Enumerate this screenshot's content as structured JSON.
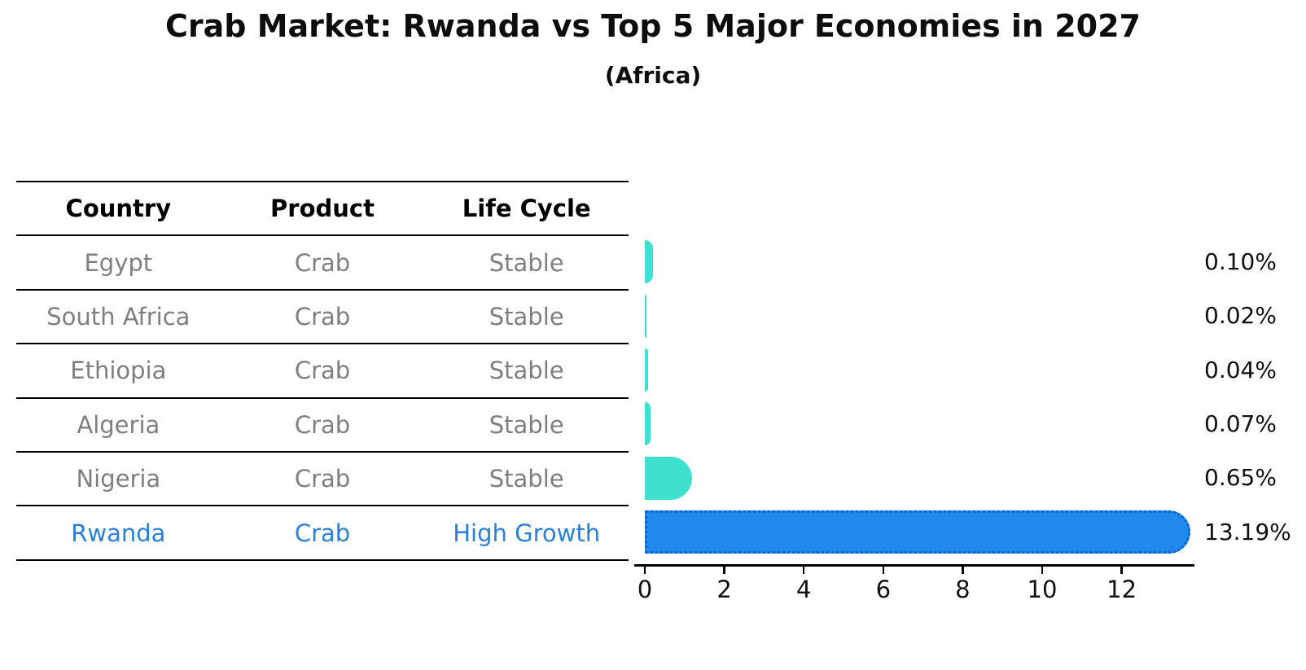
{
  "header": {
    "title": "Crab Market: Rwanda vs Top 5 Major Economies in 2027",
    "subtitle": "(Africa)"
  },
  "table": {
    "columns": [
      "Country",
      "Product",
      "Life Cycle"
    ],
    "rows": [
      {
        "country": "Egypt",
        "product": "Crab",
        "life_cycle": "Stable",
        "highlight": false
      },
      {
        "country": "South Africa",
        "product": "Crab",
        "life_cycle": "Stable",
        "highlight": false
      },
      {
        "country": "Ethiopia",
        "product": "Crab",
        "life_cycle": "Stable",
        "highlight": false
      },
      {
        "country": "Algeria",
        "product": "Crab",
        "life_cycle": "Stable",
        "highlight": false
      },
      {
        "country": "Nigeria",
        "product": "Crab",
        "life_cycle": "Stable",
        "highlight": false
      },
      {
        "country": "Rwanda",
        "product": "Crab",
        "life_cycle": "High Growth",
        "highlight": true
      }
    ]
  },
  "chart_data": {
    "type": "bar",
    "orientation": "horizontal",
    "title": "Crab Market: Rwanda vs Top 5 Major Economies in 2027",
    "subtitle": "(Africa)",
    "categories": [
      "Egypt",
      "South Africa",
      "Ethiopia",
      "Algeria",
      "Nigeria",
      "Rwanda"
    ],
    "values": [
      0.1,
      0.02,
      0.04,
      0.07,
      0.65,
      13.19
    ],
    "value_labels": [
      "0.10%",
      "0.02%",
      "0.04%",
      "0.07%",
      "0.65%",
      "13.19%"
    ],
    "xticks": [
      "0",
      "2",
      "4",
      "6",
      "8",
      "10",
      "12"
    ],
    "xtick_values": [
      0,
      2,
      4,
      6,
      8,
      10,
      12
    ],
    "xlim": [
      0,
      13.85
    ],
    "grid": false,
    "legend": false,
    "bar_color": "#40E0D0",
    "highlight_index": 5,
    "highlight_color": "#2189EC",
    "highlight_edge_color": "#0f62cc"
  },
  "colors": {
    "row_text": "#7f7f7f",
    "header_text": "#000000",
    "highlight_text": "#2b80d9",
    "axis": "#000000"
  }
}
